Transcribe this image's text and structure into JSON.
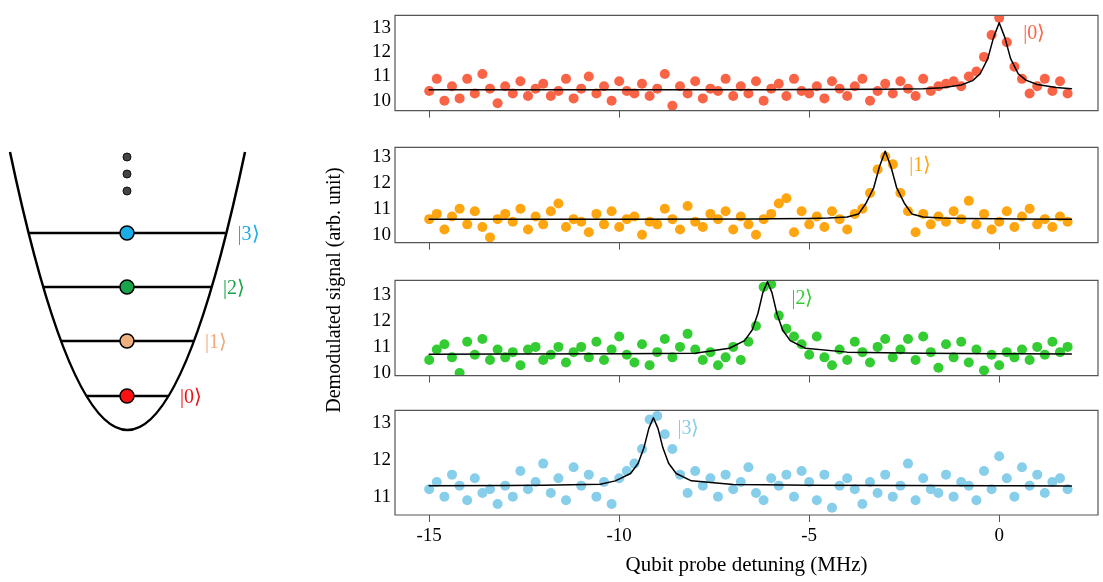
{
  "chart_data": [
    {
      "type": "other",
      "annotations": [
        "|3⟩",
        "|2⟩",
        "|1⟩",
        "|0⟩"
      ]
    },
    {
      "type": "scatter",
      "ylabel": "Demodulated signal (arb. unit)",
      "xlim": [
        -15.9,
        2.6
      ],
      "xticks": [
        -15,
        -10,
        -5,
        0
      ],
      "ylim": [
        9.6,
        13.5
      ],
      "yticks": [
        10,
        11,
        12,
        13
      ],
      "tick_labels": "y",
      "annotations": [
        "|0⟩"
      ],
      "series": [
        {
          "type": "scatter",
          "marker": "circle",
          "color": "#fa6446",
          "x": [
            -15,
            -14.8,
            -14.6,
            -14.4,
            -14.2,
            -14,
            -13.8,
            -13.6,
            -13.4,
            -13.2,
            -13,
            -12.8,
            -12.6,
            -12.4,
            -12.2,
            -12,
            -11.8,
            -11.6,
            -11.4,
            -11.2,
            -11,
            -10.8,
            -10.6,
            -10.4,
            -10.2,
            -10,
            -9.8,
            -9.6,
            -9.4,
            -9.2,
            -9,
            -8.8,
            -8.6,
            -8.4,
            -8.2,
            -8,
            -7.8,
            -7.6,
            -7.4,
            -7.2,
            -7,
            -6.8,
            -6.6,
            -6.4,
            -6.2,
            -6,
            -5.8,
            -5.6,
            -5.4,
            -5.2,
            -5,
            -4.8,
            -4.6,
            -4.4,
            -4.2,
            -4,
            -3.8,
            -3.6,
            -3.4,
            -3.2,
            -3,
            -2.8,
            -2.6,
            -2.4,
            -2.2,
            -2,
            -1.8,
            -1.6,
            -1.4,
            -1.2,
            -1,
            -0.8,
            -0.6,
            -0.4,
            -0.2,
            0,
            0.2,
            0.4,
            0.6,
            0.8,
            1,
            1.2,
            1.4,
            1.6,
            1.8
          ],
          "values": [
            10.4,
            10.9,
            10.0,
            10.6,
            10.1,
            10.9,
            10.3,
            11.1,
            10.5,
            9.9,
            10.6,
            10.3,
            10.8,
            10.2,
            10.5,
            10.7,
            10.2,
            10.4,
            10.9,
            10.1,
            10.5,
            11.0,
            10.3,
            10.6,
            10.0,
            10.8,
            10.4,
            10.3,
            10.7,
            10.2,
            10.5,
            11.1,
            9.8,
            10.6,
            10.3,
            10.8,
            10.1,
            10.5,
            10.4,
            10.9,
            10.2,
            10.6,
            10.3,
            10.8,
            10.0,
            10.5,
            10.7,
            10.2,
            10.9,
            10.4,
            10.3,
            10.6,
            10.1,
            10.8,
            10.5,
            10.2,
            10.6,
            10.9,
            10.0,
            10.4,
            10.7,
            10.3,
            10.8,
            10.5,
            10.2,
            10.9,
            10.4,
            10.6,
            10.7,
            10.8,
            10.6,
            11.0,
            11.2,
            11.8,
            12.7,
            13.4,
            12.4,
            11.4,
            10.9,
            10.3,
            10.6,
            10.9,
            10.4,
            10.8,
            10.3
          ]
        },
        {
          "type": "line",
          "color": "#000000",
          "x": [
            -15,
            -10,
            -5,
            -3,
            -2,
            -1.5,
            -1,
            -0.7,
            -0.5,
            -0.3,
            -0.15,
            0,
            0.15,
            0.3,
            0.5,
            0.7,
            1,
            1.5,
            1.9
          ],
          "values": [
            10.45,
            10.45,
            10.46,
            10.47,
            10.5,
            10.54,
            10.65,
            10.83,
            11.11,
            11.73,
            12.59,
            13.2,
            12.59,
            11.73,
            11.11,
            10.85,
            10.67,
            10.55,
            10.5
          ]
        }
      ]
    },
    {
      "type": "scatter",
      "xlim": [
        -15.9,
        2.6
      ],
      "xticks": [
        -15,
        -10,
        -5,
        0
      ],
      "ylim": [
        9.7,
        13.35
      ],
      "yticks": [
        10,
        11,
        12,
        13
      ],
      "tick_labels": "y",
      "annotations": [
        "|1⟩"
      ],
      "series": [
        {
          "type": "scatter",
          "marker": "circle",
          "color": "#ffa510",
          "x": [
            -15,
            -14.8,
            -14.6,
            -14.4,
            -14.2,
            -14,
            -13.8,
            -13.6,
            -13.4,
            -13.2,
            -13,
            -12.8,
            -12.6,
            -12.4,
            -12.2,
            -12,
            -11.8,
            -11.6,
            -11.4,
            -11.2,
            -11,
            -10.8,
            -10.6,
            -10.4,
            -10.2,
            -10,
            -9.8,
            -9.6,
            -9.4,
            -9.2,
            -9,
            -8.8,
            -8.6,
            -8.4,
            -8.2,
            -8,
            -7.8,
            -7.6,
            -7.4,
            -7.2,
            -7,
            -6.8,
            -6.6,
            -6.4,
            -6.2,
            -6,
            -5.8,
            -5.6,
            -5.4,
            -5.2,
            -5,
            -4.8,
            -4.6,
            -4.4,
            -4.2,
            -4,
            -3.8,
            -3.6,
            -3.4,
            -3.2,
            -3,
            -2.8,
            -2.6,
            -2.4,
            -2.2,
            -2,
            -1.8,
            -1.6,
            -1.4,
            -1.2,
            -1,
            -0.8,
            -0.6,
            -0.4,
            -0.2,
            0,
            0.2,
            0.4,
            0.6,
            0.8,
            1,
            1.2,
            1.4,
            1.6,
            1.8
          ],
          "values": [
            10.6,
            10.8,
            10.2,
            10.7,
            11.0,
            10.4,
            10.9,
            10.3,
            9.9,
            10.6,
            10.8,
            10.5,
            11.0,
            10.2,
            10.7,
            10.4,
            10.9,
            11.2,
            10.3,
            10.6,
            10.5,
            10.1,
            10.8,
            10.4,
            10.9,
            10.3,
            10.6,
            10.7,
            10.0,
            10.5,
            10.4,
            11.0,
            10.6,
            10.2,
            11.1,
            10.5,
            10.3,
            10.8,
            10.6,
            10.9,
            10.2,
            10.7,
            10.4,
            10.0,
            10.6,
            10.8,
            11.2,
            11.4,
            10.1,
            10.9,
            10.4,
            10.7,
            10.3,
            10.9,
            10.6,
            10.2,
            10.8,
            11.0,
            11.6,
            12.5,
            13.0,
            12.7,
            11.6,
            10.9,
            10.1,
            10.8,
            10.4,
            10.7,
            10.5,
            10.9,
            10.6,
            11.3,
            10.4,
            10.8,
            10.2,
            10.5,
            10.9,
            10.3,
            10.7,
            11.0,
            10.4,
            10.6,
            10.3,
            10.7,
            10.5
          ]
        },
        {
          "type": "line",
          "color": "#000000",
          "x": [
            -15,
            -10,
            -6,
            -5,
            -4.5,
            -4,
            -3.7,
            -3.5,
            -3.3,
            -3.15,
            -3,
            -2.85,
            -2.7,
            -2.5,
            -2.3,
            -2,
            -1.5,
            -1,
            0,
            1.9
          ],
          "values": [
            10.6,
            10.6,
            10.61,
            10.62,
            10.64,
            10.68,
            10.8,
            11.22,
            11.81,
            12.62,
            13.2,
            12.62,
            11.81,
            11.22,
            10.8,
            10.68,
            10.64,
            10.62,
            10.61,
            10.6
          ]
        }
      ]
    },
    {
      "type": "scatter",
      "xlim": [
        -15.9,
        2.6
      ],
      "xticks": [
        -15,
        -10,
        -5,
        0
      ],
      "ylim": [
        9.9,
        13.55
      ],
      "yticks": [
        10,
        11,
        12,
        13
      ],
      "tick_labels": "y",
      "annotations": [
        "|2⟩"
      ],
      "series": [
        {
          "type": "scatter",
          "marker": "circle",
          "color": "#33cc33",
          "x": [
            -15,
            -14.8,
            -14.6,
            -14.4,
            -14.2,
            -14,
            -13.8,
            -13.6,
            -13.4,
            -13.2,
            -13,
            -12.8,
            -12.6,
            -12.4,
            -12.2,
            -12,
            -11.8,
            -11.6,
            -11.4,
            -11.2,
            -11,
            -10.8,
            -10.6,
            -10.4,
            -10.2,
            -10,
            -9.8,
            -9.6,
            -9.4,
            -9.2,
            -9,
            -8.8,
            -8.6,
            -8.4,
            -8.2,
            -8,
            -7.8,
            -7.6,
            -7.4,
            -7.2,
            -7,
            -6.8,
            -6.6,
            -6.4,
            -6.2,
            -6,
            -5.8,
            -5.6,
            -5.4,
            -5.2,
            -5,
            -4.8,
            -4.6,
            -4.4,
            -4.2,
            -4,
            -3.8,
            -3.6,
            -3.4,
            -3.2,
            -3,
            -2.8,
            -2.6,
            -2.4,
            -2.2,
            -2,
            -1.8,
            -1.6,
            -1.4,
            -1.2,
            -1,
            -0.8,
            -0.6,
            -0.4,
            -0.2,
            0,
            0.2,
            0.4,
            0.6,
            0.8,
            1,
            1.2,
            1.4,
            1.6,
            1.8
          ],
          "values": [
            10.5,
            10.9,
            11.1,
            10.6,
            10.0,
            11.2,
            10.7,
            11.3,
            10.5,
            10.9,
            10.6,
            10.8,
            10.3,
            10.9,
            11.0,
            10.5,
            10.7,
            11.0,
            10.4,
            10.8,
            11.0,
            10.6,
            11.2,
            10.5,
            10.9,
            11.4,
            10.7,
            10.4,
            11.1,
            10.3,
            10.8,
            11.3,
            10.6,
            11.0,
            11.5,
            10.9,
            10.5,
            10.8,
            10.3,
            10.6,
            11.0,
            10.5,
            11.2,
            11.8,
            13.3,
            13.4,
            12.2,
            11.7,
            11.4,
            11.1,
            10.7,
            11.4,
            10.6,
            10.3,
            10.9,
            10.5,
            11.2,
            10.8,
            10.4,
            11.0,
            11.3,
            10.6,
            10.9,
            11.3,
            10.5,
            11.4,
            10.8,
            10.2,
            11.1,
            10.6,
            11.2,
            10.4,
            10.9,
            10.1,
            10.7,
            10.3,
            10.8,
            10.6,
            10.9,
            10.5,
            11.0,
            10.7,
            11.2,
            10.8,
            11.0
          ]
        },
        {
          "type": "line",
          "color": "#000000",
          "x": [
            -15,
            -10,
            -8,
            -7.1,
            -6.7,
            -6.5,
            -6.35,
            -6.22,
            -6.1,
            -5.98,
            -5.85,
            -5.7,
            -5.5,
            -5.1,
            -4,
            -2,
            0,
            1.9
          ],
          "values": [
            10.72,
            10.74,
            10.76,
            10.95,
            11.24,
            11.65,
            12.28,
            13.08,
            13.5,
            13.08,
            12.28,
            11.65,
            11.24,
            10.95,
            10.8,
            10.76,
            10.74,
            10.73
          ]
        }
      ]
    },
    {
      "type": "scatter",
      "xlabel": "Qubit probe detuning (MHz)",
      "xlim": [
        -15.9,
        2.6
      ],
      "xticks": [
        -15,
        -10,
        -5,
        0
      ],
      "ylim": [
        10.5,
        13.35
      ],
      "yticks": [
        11,
        12,
        13
      ],
      "annotations": [
        "|3⟩"
      ],
      "series": [
        {
          "type": "scatter",
          "marker": "circle",
          "color": "#87ceeb",
          "x": [
            -15,
            -14.8,
            -14.6,
            -14.4,
            -14.2,
            -14,
            -13.8,
            -13.6,
            -13.4,
            -13.2,
            -13,
            -12.8,
            -12.6,
            -12.4,
            -12.2,
            -12,
            -11.8,
            -11.6,
            -11.4,
            -11.2,
            -11,
            -10.8,
            -10.6,
            -10.4,
            -10.2,
            -10,
            -9.8,
            -9.6,
            -9.4,
            -9.2,
            -9,
            -8.8,
            -8.6,
            -8.4,
            -8.2,
            -8,
            -7.8,
            -7.6,
            -7.4,
            -7.2,
            -7,
            -6.8,
            -6.6,
            -6.4,
            -6.2,
            -6,
            -5.8,
            -5.6,
            -5.4,
            -5.2,
            -5,
            -4.8,
            -4.6,
            -4.4,
            -4.2,
            -4,
            -3.8,
            -3.6,
            -3.4,
            -3.2,
            -3,
            -2.8,
            -2.6,
            -2.4,
            -2.2,
            -2,
            -1.8,
            -1.6,
            -1.4,
            -1.2,
            -1,
            -0.8,
            -0.6,
            -0.4,
            -0.2,
            0,
            0.2,
            0.4,
            0.6,
            0.8,
            1,
            1.2,
            1.4,
            1.6,
            1.8
          ],
          "values": [
            11.2,
            11.4,
            11.0,
            11.6,
            11.3,
            10.9,
            11.5,
            11.1,
            11.2,
            10.8,
            11.3,
            11.0,
            11.7,
            11.2,
            11.4,
            11.9,
            11.1,
            11.5,
            10.9,
            11.8,
            11.3,
            11.6,
            11.0,
            11.4,
            10.8,
            11.5,
            11.7,
            11.9,
            12.3,
            13.1,
            13.2,
            12.7,
            12.3,
            11.6,
            11.1,
            11.7,
            11.3,
            11.5,
            11.0,
            11.6,
            11.2,
            11.4,
            11.8,
            11.1,
            10.9,
            11.5,
            11.3,
            11.6,
            11.0,
            11.7,
            11.4,
            10.9,
            11.6,
            10.7,
            11.3,
            11.5,
            11.2,
            10.8,
            11.4,
            11.1,
            11.6,
            11.0,
            11.3,
            11.9,
            10.9,
            11.5,
            11.2,
            11.1,
            11.6,
            11.0,
            11.4,
            11.3,
            10.9,
            11.7,
            11.2,
            12.1,
            11.5,
            11.0,
            11.8,
            11.3,
            11.6,
            11.1,
            11.4,
            11.5,
            11.2
          ]
        },
        {
          "type": "line",
          "color": "#000000",
          "x": [
            -15,
            -12,
            -10.5,
            -10.1,
            -9.7,
            -9.5,
            -9.35,
            -9.22,
            -9.1,
            -8.98,
            -8.85,
            -8.7,
            -8.5,
            -8.1,
            -7,
            -5,
            0,
            1.9
          ],
          "values": [
            11.3,
            11.31,
            11.34,
            11.43,
            11.63,
            11.91,
            12.33,
            12.86,
            13.15,
            12.86,
            12.33,
            11.91,
            11.63,
            11.43,
            11.33,
            11.31,
            11.3,
            11.29
          ]
        }
      ]
    }
  ]
}
